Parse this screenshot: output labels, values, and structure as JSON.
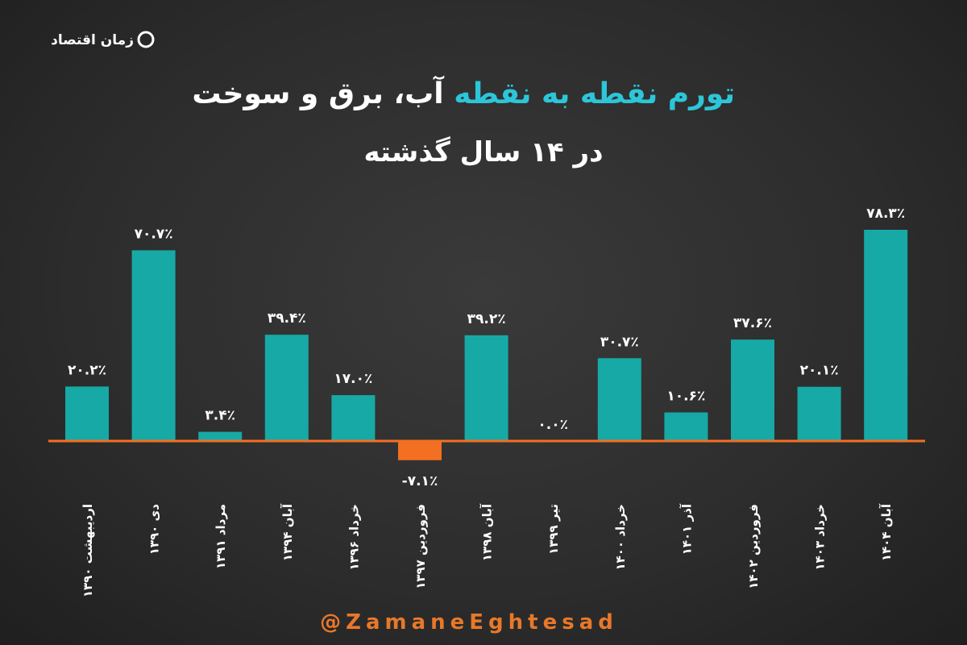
{
  "brand": "زمان اقتصاد",
  "chart_data": {
    "type": "bar",
    "title_highlight": "تورم نقطه به نقطه",
    "title": "آب، برق و سوخت",
    "subtitle": "در ۱۴ سال گذشته",
    "categories": [
      "اردیبهشت ۱۳۹۰",
      "دی ۱۳۹۰",
      "مرداد ۱۳۹۱",
      "آبان ۱۳۹۴",
      "خرداد ۱۳۹۶",
      "فروردین ۱۳۹۷",
      "آبان ۱۳۹۸",
      "تیر ۱۳۹۹",
      "خرداد ۱۴۰۰",
      "آذر ۱۴۰۱",
      "فروردین ۱۴۰۲",
      "خرداد ۱۴۰۳",
      "آبان ۱۴۰۴"
    ],
    "values": [
      20.2,
      70.7,
      3.4,
      39.4,
      17.0,
      -7.1,
      39.2,
      0.0,
      30.7,
      10.6,
      37.6,
      20.1,
      78.3
    ],
    "value_labels": [
      "۲۰.۲٪",
      "۷۰.۷٪",
      "۳.۴٪",
      "۳۹.۴٪",
      "۱۷.۰٪",
      "-۷.۱٪",
      "۳۹.۲٪",
      "۰.۰٪",
      "۳۰.۷٪",
      "۱۰.۶٪",
      "۳۷.۶٪",
      "۲۰.۱٪",
      "۷۸.۳٪"
    ],
    "color": "#17a9a5",
    "negative_color": "#f36f21"
  },
  "footer": "@ZamaneEghtesad"
}
